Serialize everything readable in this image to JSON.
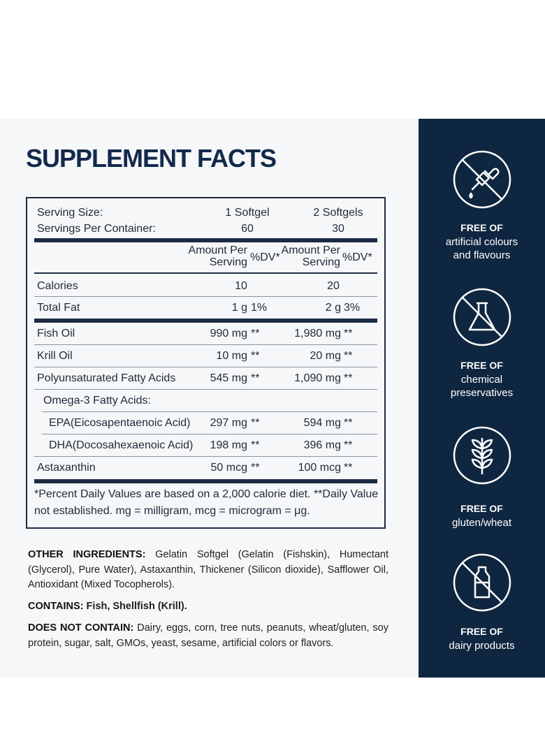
{
  "title": "SUPPLEMENT FACTS",
  "table": {
    "serving": [
      {
        "label": "Serving Size:",
        "col1": "1 Softgel",
        "col2": "2 Softgels"
      },
      {
        "label": "Servings Per Container:",
        "col1": "60",
        "col2": "30"
      }
    ],
    "header": {
      "amount1": "Amount Per Serving",
      "dv1": "%DV*",
      "amount2": "Amount Per Serving",
      "dv2": "%DV*"
    },
    "sections": [
      [
        {
          "name": "Calories",
          "amount1": "10",
          "amount2": "20"
        },
        {
          "name": "Total Fat",
          "amount1": "1 g",
          "dv1": "1%",
          "amount2": "2 g",
          "dv2": "3%"
        }
      ],
      [
        {
          "name": "Fish Oil",
          "amount1": "990 mg",
          "dv1": "**",
          "amount2": "1,980 mg",
          "dv2": "**"
        },
        {
          "name": "Krill Oil",
          "amount1": "10 mg",
          "dv1": "**",
          "amount2": "20 mg",
          "dv2": "**"
        },
        {
          "name": "Polyunsaturated Fatty Acids",
          "amount1": "545 mg",
          "dv1": "**",
          "amount2": "1,090 mg",
          "dv2": "**"
        },
        {
          "name": "Omega-3 Fatty Acids:",
          "children": [
            {
              "name": "EPA(Eicosapentaenoic Acid)",
              "amount1": "297 mg",
              "dv1": "**",
              "amount2": "594 mg",
              "dv2": "**"
            },
            {
              "name": "DHA(Docosahexaenoic Acid)",
              "amount1": "198 mg",
              "dv1": "**",
              "amount2": "396 mg",
              "dv2": "**"
            }
          ]
        },
        {
          "name": "Astaxanthin",
          "amount1": "50 mcg",
          "dv1": "**",
          "amount2": "100 mcg",
          "dv2": "**"
        }
      ]
    ],
    "footnote": "*Percent Daily Values are based on a 2,000 calorie diet. **Daily Value not established. mg = milligram, mcg = microgram = μg."
  },
  "other_ingredients": {
    "label": "OTHER INGREDIENTS:",
    "text": "Gelatin Softgel (Gelatin (Fishskin), Humectant (Glycerol), Pure Water), Astaxanthin, Thickener (Silicon dioxide), Safflower Oil, Antioxidant (Mixed Tocopherols)."
  },
  "contains": {
    "label": "CONTAINS:",
    "text": "Fish, Shellfish (Krill)."
  },
  "does_not_contain": {
    "label": "DOES NOT CONTAIN:",
    "text": "Dairy, eggs, corn, tree nuts, peanuts, wheat/gluten, soy protein, sugar, salt, GMOs, yeast, sesame, artificial colors or flavors."
  },
  "badges": [
    {
      "heading": "FREE OF",
      "text": "artificial colours and flavours"
    },
    {
      "heading": "FREE OF",
      "text": "chemical preservatives"
    },
    {
      "heading": "FREE OF",
      "text": "gluten/wheat"
    },
    {
      "heading": "FREE OF",
      "text": "dairy products"
    }
  ]
}
